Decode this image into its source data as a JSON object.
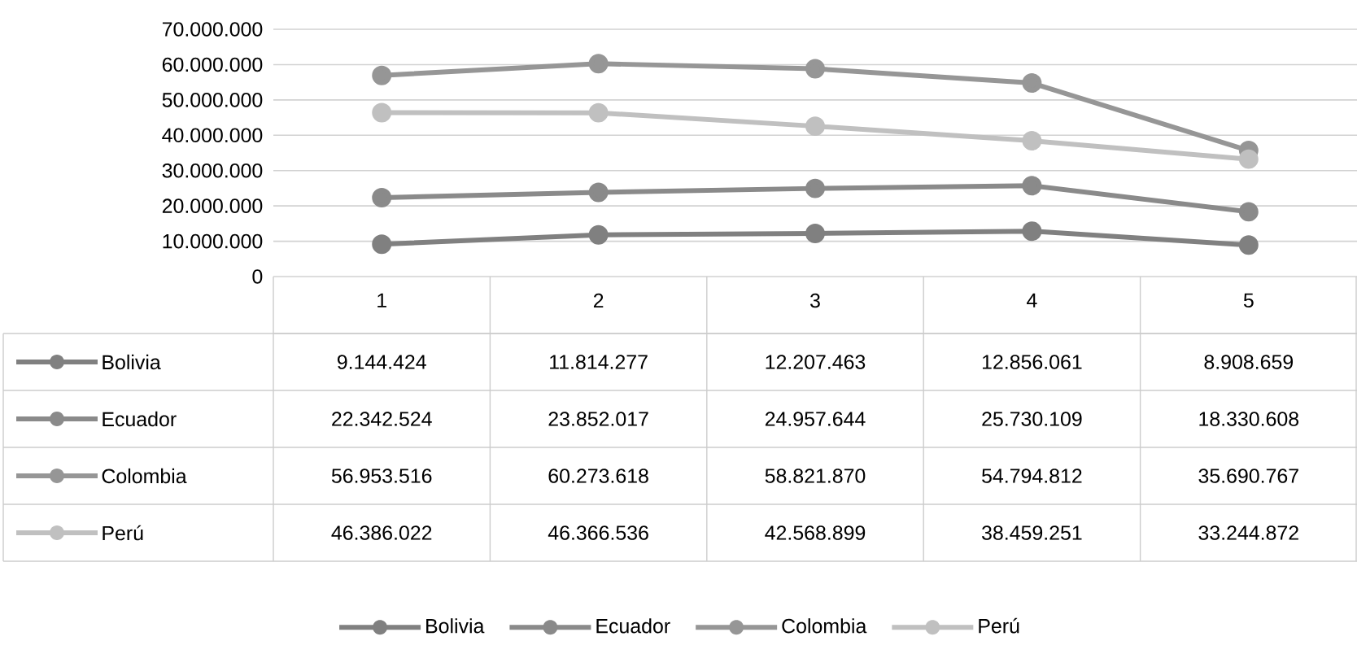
{
  "chart_data": {
    "type": "line",
    "categories": [
      "1",
      "2",
      "3",
      "4",
      "5"
    ],
    "series": [
      {
        "name": "Bolivia",
        "color": "#808080",
        "values": [
          9144424,
          11814277,
          12207463,
          12856061,
          8908659
        ],
        "value_labels": [
          "9.144.424",
          "11.814.277",
          "12.207.463",
          "12.856.061",
          "8.908.659"
        ]
      },
      {
        "name": "Ecuador",
        "color": "#8a8a8a",
        "values": [
          22342524,
          23852017,
          24957644,
          25730109,
          18330608
        ],
        "value_labels": [
          "22.342.524",
          "23.852.017",
          "24.957.644",
          "25.730.109",
          "18.330.608"
        ]
      },
      {
        "name": "Colombia",
        "color": "#969696",
        "values": [
          56953516,
          60273618,
          58821870,
          54794812,
          35690767
        ],
        "value_labels": [
          "56.953.516",
          "60.273.618",
          "58.821.870",
          "54.794.812",
          "35.690.767"
        ]
      },
      {
        "name": "Perú",
        "color": "#c0c0c0",
        "values": [
          46386022,
          46366536,
          42568899,
          38459251,
          33244872
        ],
        "value_labels": [
          "46.386.022",
          "46.366.536",
          "42.568.899",
          "38.459.251",
          "33.244.872"
        ]
      }
    ],
    "ylim": [
      0,
      70000000
    ],
    "yticks": [
      {
        "value": 0,
        "label": "0"
      },
      {
        "value": 10000000,
        "label": "10.000.000"
      },
      {
        "value": 20000000,
        "label": "20.000.000"
      },
      {
        "value": 30000000,
        "label": "30.000.000"
      },
      {
        "value": 40000000,
        "label": "40.000.000"
      },
      {
        "value": 50000000,
        "label": "50.000.000"
      },
      {
        "value": 60000000,
        "label": "60.000.000"
      },
      {
        "value": 70000000,
        "label": "70.000.000"
      }
    ],
    "grid": "y",
    "legend": "bottom",
    "marker": "circle",
    "line_style": "solid"
  }
}
